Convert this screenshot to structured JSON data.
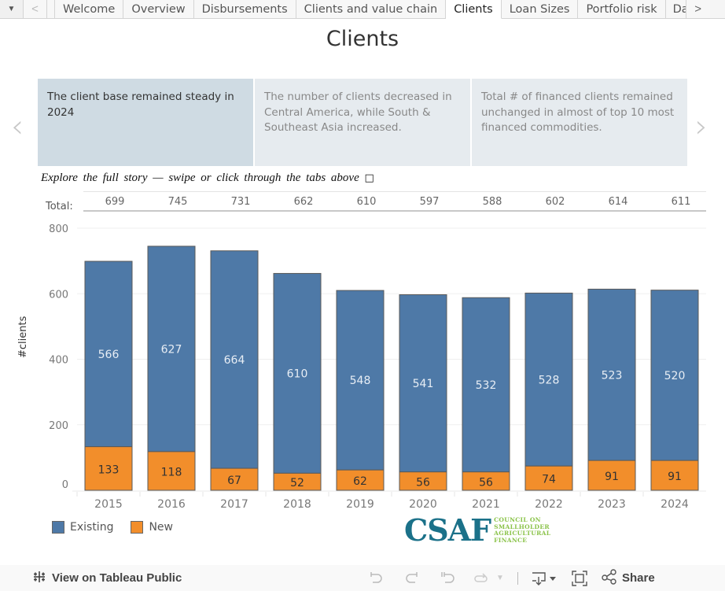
{
  "tabs": {
    "menu_icon": "dropdown-triangle",
    "prev_icon": "chevron-left",
    "next_icon": "chevron-right",
    "items": [
      {
        "label": "Welcome",
        "active": false
      },
      {
        "label": "Overview",
        "active": false
      },
      {
        "label": "Disbursements",
        "active": false
      },
      {
        "label": "Clients and value chain",
        "active": false
      },
      {
        "label": "Clients",
        "active": true
      },
      {
        "label": "Loan Sizes",
        "active": false
      },
      {
        "label": "Portfolio risk",
        "active": false
      },
      {
        "label": "Da",
        "active": false
      }
    ]
  },
  "page_title": "Clients",
  "story_points": [
    {
      "text": "The client base remained steady in 2024",
      "active": true
    },
    {
      "text": "The number of clients decreased in Central America, while South & Southeast Asia increased.",
      "active": false
    },
    {
      "text": "Total # of financed clients remained unchanged in almost of top 10 most financed commodities.",
      "active": false
    }
  ],
  "story_nav": {
    "prev": "‹",
    "next": "›"
  },
  "explore_text": "Explore the full story — swipe or click through the tabs above",
  "explore_glyph": "□",
  "totals": {
    "label": "Total:",
    "values": [
      "699",
      "745",
      "731",
      "662",
      "610",
      "597",
      "588",
      "602",
      "614",
      "611"
    ]
  },
  "chart_data": {
    "type": "bar",
    "stacked": true,
    "title": "Clients",
    "xlabel": "",
    "ylabel": "#clients",
    "ylim": [
      0,
      800
    ],
    "yticks": [
      0,
      200,
      400,
      600,
      800
    ],
    "grid": true,
    "categories": [
      "2015",
      "2016",
      "2017",
      "2018",
      "2019",
      "2020",
      "2021",
      "2022",
      "2023",
      "2024"
    ],
    "series": [
      {
        "name": "New",
        "color": "#f28e2b",
        "values": [
          133,
          118,
          67,
          52,
          62,
          56,
          56,
          74,
          91,
          91
        ]
      },
      {
        "name": "Existing",
        "color": "#4e79a7",
        "values": [
          566,
          627,
          664,
          610,
          548,
          541,
          532,
          528,
          523,
          520
        ]
      }
    ],
    "legend_position": "bottom-left"
  },
  "legend": [
    {
      "label": "Existing",
      "color": "#4e79a7"
    },
    {
      "label": "New",
      "color": "#f28e2b"
    }
  ],
  "logo": {
    "main": "CSAF",
    "sub": [
      "COUNCIL ON",
      "SMALLHOLDER",
      "AGRICULTURAL",
      "FINANCE"
    ]
  },
  "footer": {
    "view_label": "View on Tableau Public",
    "share_label": "Share"
  }
}
